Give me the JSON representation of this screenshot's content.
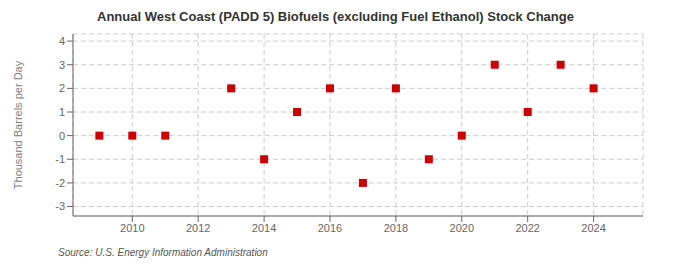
{
  "chart_data": {
    "type": "scatter",
    "title": "Annual West Coast (PADD 5) Biofuels (excluding Fuel Ethanol) Stock Change",
    "y_label": "Thousand Barrels per Day",
    "source": "Source: U.S. Energy Information Administration",
    "x": [
      2009,
      2010,
      2011,
      2013,
      2014,
      2015,
      2016,
      2017,
      2018,
      2019,
      2020,
      2021,
      2022,
      2023,
      2024
    ],
    "values": [
      0,
      0,
      0,
      2,
      -1,
      1,
      2,
      -2,
      2,
      -1,
      0,
      3,
      1,
      3,
      2
    ],
    "xlim": [
      2008.2,
      2025.5
    ],
    "ylim": [
      -3.4,
      4.3
    ],
    "xticks": [
      2010,
      2012,
      2014,
      2016,
      2018,
      2020,
      2022,
      2024
    ],
    "yticks": [
      -3,
      -2,
      -1,
      0,
      1,
      2,
      3,
      4
    ],
    "color": "#cc0000",
    "marker": "square",
    "grid": true
  }
}
